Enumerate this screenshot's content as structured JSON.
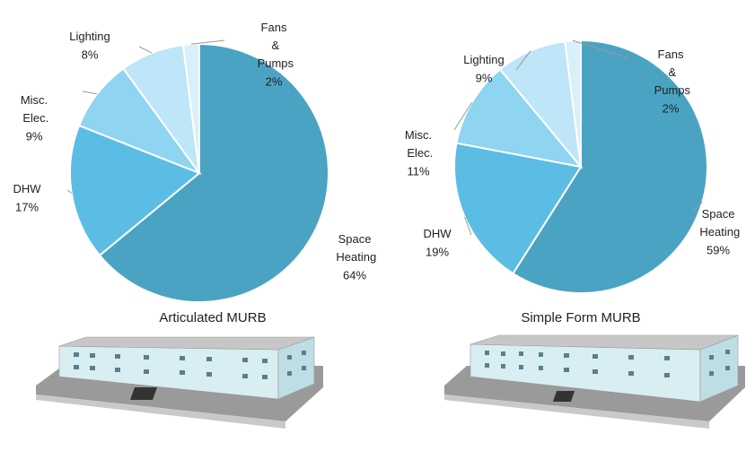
{
  "chart_data": [
    {
      "type": "pie",
      "title": "Articulated MURB",
      "categories": [
        "Space Heating",
        "DHW",
        "Misc. Elec.",
        "Lighting",
        "Fans & Pumps"
      ],
      "values": [
        64,
        17,
        9,
        8,
        2
      ],
      "value_labels": [
        "64%",
        "17%",
        "9%",
        "8%",
        "2%"
      ],
      "colors": [
        "#4aa3c3",
        "#5bbde3",
        "#8fd4f1",
        "#bee5f8",
        "#d9eff9"
      ]
    },
    {
      "type": "pie",
      "title": "Simple Form MURB",
      "categories": [
        "Space Heating",
        "DHW",
        "Misc. Elec.",
        "Lighting",
        "Fans & Pumps"
      ],
      "values": [
        59,
        19,
        11,
        9,
        2
      ],
      "value_labels": [
        "59%",
        "19%",
        "11%",
        "9%",
        "2%"
      ],
      "colors": [
        "#4aa3c3",
        "#5bbde3",
        "#8fd4f1",
        "#bee5f8",
        "#d9eff9"
      ]
    }
  ]
}
